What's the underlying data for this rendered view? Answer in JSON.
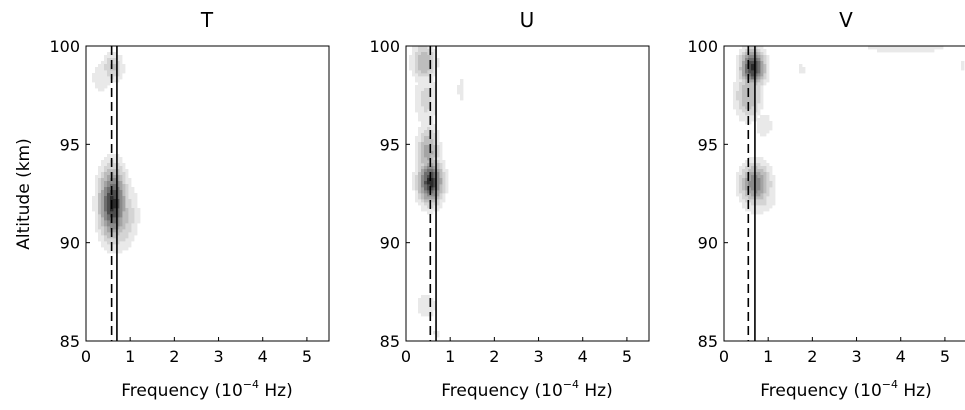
{
  "chart_data": [
    {
      "type": "contour",
      "title": "T",
      "xlabel": "Frequency (10^-4 Hz)",
      "ylabel": "Altitude (km)",
      "xlim": [
        0,
        5.5
      ],
      "ylim": [
        85,
        100
      ],
      "xticks": [
        "0",
        "1",
        "2",
        "3",
        "4",
        "5"
      ],
      "yticks": [
        "85",
        "90",
        "95",
        "100"
      ],
      "reference_lines": [
        {
          "style": "dashed",
          "x": 0.58
        },
        {
          "style": "solid",
          "x": 0.7
        }
      ],
      "peaks": [
        {
          "x": 0.6,
          "y": 92.0,
          "level": 1.0,
          "sx": 0.22,
          "sy": 1.3
        },
        {
          "x": 0.72,
          "y": 91.4,
          "level": 0.5,
          "sx": 0.3,
          "sy": 1.2
        },
        {
          "x": 0.6,
          "y": 98.9,
          "level": 0.4,
          "sx": 0.18,
          "sy": 0.55
        },
        {
          "x": 0.35,
          "y": 98.4,
          "level": 0.22,
          "sx": 0.2,
          "sy": 0.7
        }
      ]
    },
    {
      "type": "contour",
      "title": "U",
      "xlabel": "Frequency (10^-4 Hz)",
      "ylabel": "",
      "xlim": [
        0,
        5.5
      ],
      "ylim": [
        85,
        100
      ],
      "xticks": [
        "0",
        "1",
        "2",
        "3",
        "4",
        "5"
      ],
      "yticks": [
        "85",
        "90",
        "95",
        "100"
      ],
      "reference_lines": [
        {
          "style": "dashed",
          "x": 0.55
        },
        {
          "style": "solid",
          "x": 0.68
        }
      ],
      "peaks": [
        {
          "x": 0.55,
          "y": 93.1,
          "level": 1.0,
          "sx": 0.2,
          "sy": 0.8
        },
        {
          "x": 0.5,
          "y": 94.6,
          "level": 0.55,
          "sx": 0.18,
          "sy": 1.0
        },
        {
          "x": 0.4,
          "y": 99.2,
          "level": 0.5,
          "sx": 0.2,
          "sy": 0.7
        },
        {
          "x": 0.45,
          "y": 97.3,
          "level": 0.3,
          "sx": 0.2,
          "sy": 1.1
        },
        {
          "x": 1.25,
          "y": 97.8,
          "level": 0.22,
          "sx": 0.07,
          "sy": 0.5
        },
        {
          "x": 0.45,
          "y": 86.8,
          "level": 0.22,
          "sx": 0.22,
          "sy": 0.6
        },
        {
          "x": 0.7,
          "y": 85.4,
          "level": 0.16,
          "sx": 0.12,
          "sy": 0.35
        }
      ]
    },
    {
      "type": "contour",
      "title": "V",
      "xlabel": "Frequency (10^-4 Hz)",
      "ylabel": "",
      "xlim": [
        0,
        5.5
      ],
      "ylim": [
        85,
        100
      ],
      "xticks": [
        "0",
        "1",
        "2",
        "3",
        "4",
        "5"
      ],
      "yticks": [
        "85",
        "90",
        "95",
        "100"
      ],
      "reference_lines": [
        {
          "style": "dashed",
          "x": 0.55
        },
        {
          "style": "solid",
          "x": 0.7
        }
      ],
      "peaks": [
        {
          "x": 0.65,
          "y": 98.9,
          "level": 1.0,
          "sx": 0.2,
          "sy": 0.65
        },
        {
          "x": 0.55,
          "y": 97.5,
          "level": 0.5,
          "sx": 0.22,
          "sy": 0.9
        },
        {
          "x": 0.7,
          "y": 93.0,
          "level": 0.72,
          "sx": 0.25,
          "sy": 0.75
        },
        {
          "x": 0.75,
          "y": 92.3,
          "level": 0.35,
          "sx": 0.3,
          "sy": 0.6
        },
        {
          "x": 0.9,
          "y": 96.0,
          "level": 0.22,
          "sx": 0.18,
          "sy": 0.6
        },
        {
          "x": 1.75,
          "y": 98.8,
          "level": 0.2,
          "sx": 0.07,
          "sy": 0.3
        },
        {
          "x": 4.1,
          "y": 99.9,
          "level": 0.2,
          "sx": 1.0,
          "sy": 0.25
        },
        {
          "x": 5.4,
          "y": 99.0,
          "level": 0.18,
          "sx": 0.08,
          "sy": 0.25
        }
      ]
    }
  ]
}
